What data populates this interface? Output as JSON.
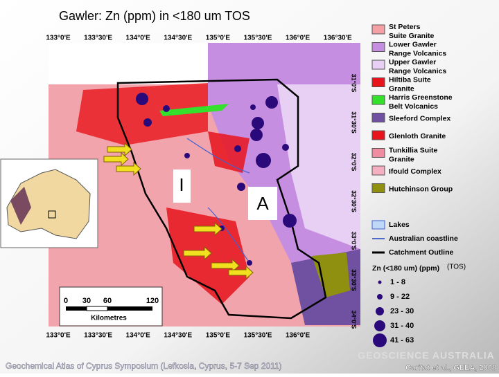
{
  "title": "Gawler: Zn (ppm) in <180 um TOS",
  "top_axis": [
    "133°0'E",
    "133°30'E",
    "134°0'E",
    "134°30'E",
    "135°0'E",
    "135°30'E",
    "136°0'E",
    "136°30'E"
  ],
  "bottom_axis": [
    "133°0'E",
    "133°30'E",
    "134°0'E",
    "134°30'E",
    "135°0'E",
    "135°30'E",
    "136°0'E"
  ],
  "right_axis": [
    "31°0'S",
    "31°30'S",
    "32°0'S",
    "32°30'S",
    "33°0'S",
    "33°30'S",
    "34°0'S"
  ],
  "map_labels": [
    "I",
    "A"
  ],
  "scale_bar": {
    "ticks": [
      "0",
      "30",
      "60",
      "120"
    ],
    "unit": "Kilometres"
  },
  "legend": [
    {
      "name": "St Peters\nSuite Granite",
      "color": "#f4a0a4"
    },
    {
      "name": "Lower Gawler\nRange Volcanics",
      "color": "#c58ee0"
    },
    {
      "name": "Upper Gawler\nRange Volcanics",
      "color": "#e8d0f4"
    },
    {
      "name": "Hiltiba Suite\nGranite",
      "color": "#e8141c"
    },
    {
      "name": "Harris Greenstone\nBelt Volcanics",
      "color": "#34e02c"
    },
    {
      "name": "Sleeford Complex",
      "color": "#7050a0"
    },
    {
      "name": "Glenloth Granite",
      "color": "#e8141c"
    },
    {
      "name": "Tunkillia Suite\nGranite",
      "color": "#f08ca0"
    },
    {
      "name": "Ifould Complex",
      "color": "#f4b0c0"
    },
    {
      "name": "Hutchinson Group",
      "color": "#909010"
    }
  ],
  "line_legend": [
    {
      "name": "Lakes",
      "kind": "lake"
    },
    {
      "name": "Australian coastline",
      "kind": "coast"
    },
    {
      "name": "Catchment Outline",
      "kind": "outline"
    }
  ],
  "zn_legend": {
    "title": "Zn (<180 um) (ppm)",
    "note": "(TOS)",
    "classes": [
      "1 - 8",
      "9 - 22",
      "23 - 30",
      "31 - 40",
      "41 - 63"
    ],
    "color": "#2a0a7a"
  },
  "footer": {
    "left": "Geochemical Atlas of Cyprus Symposium (Lefkosia, Cyprus, 5-7 Sep 2011)",
    "right": "Caritat et al., GEEA, 2008",
    "logo": "GEOSCIENCE AUSTRALIA"
  }
}
